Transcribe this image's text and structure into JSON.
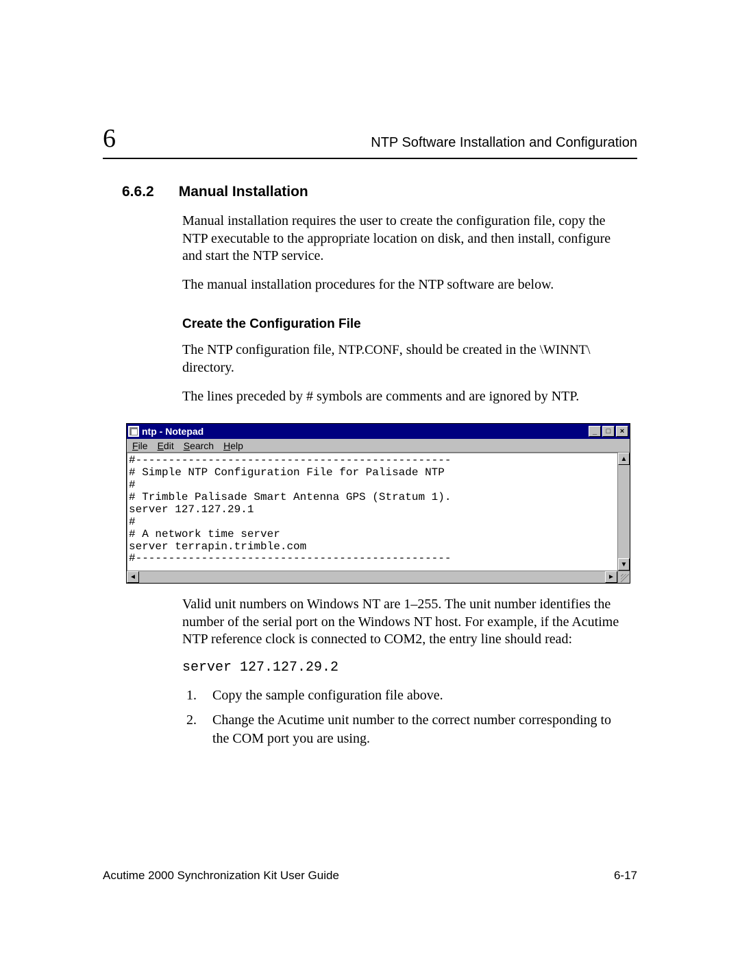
{
  "header": {
    "chapter_number": "6",
    "running_title": "NTP Software Installation and Configuration"
  },
  "section": {
    "number": "6.6.2",
    "title": "Manual Installation"
  },
  "paragraphs": {
    "p1": "Manual installation requires the user to create the configuration file, copy the NTP executable to the appropriate location on disk, and then install, configure and start the NTP service.",
    "p2": "The manual installation procedures for the NTP software are below."
  },
  "subsection": {
    "title": "Create the Configuration File",
    "p3_a": "The NTP configuration file, ",
    "p3_code": "NTP.CONF",
    "p3_b": ", should be created in the ",
    "p3_dir": "\\WINNT\\",
    "p3_c": " directory.",
    "p4": "The lines preceded by # symbols are comments and are ignored by NTP."
  },
  "notepad": {
    "title": "ntp - Notepad",
    "menus": {
      "file": "File",
      "edit": "Edit",
      "search": "Search",
      "help": "Help"
    },
    "buttons": {
      "min": "_",
      "max": "□",
      "close": "×",
      "up": "▲",
      "down": "▼",
      "left": "◄",
      "right": "►"
    },
    "content_lines": [
      "#------------------------------------------------",
      "# Simple NTP Configuration File for Palisade NTP",
      "#",
      "# Trimble Palisade Smart Antenna GPS (Stratum 1).",
      "server 127.127.29.1",
      "#",
      "# A network time server",
      "server terrapin.trimble.com",
      "#------------------------------------------------",
      ""
    ],
    "colors": {
      "titlebar_bg": "#000080",
      "titlebar_fg": "#ffffff",
      "chrome_bg": "#c0c0c0",
      "editor_bg": "#ffffff",
      "text": "#000000"
    }
  },
  "after": {
    "p5": "Valid unit numbers on Windows NT are 1–255. The unit number identifies the number of the serial port on the Windows NT host. For example, if the Acutime NTP reference clock is connected to COM2, the entry line should read:",
    "code_line": "server 127.127.29.2",
    "steps": [
      "Copy the sample configuration file above.",
      "Change the Acutime unit number to the correct number corresponding to the COM port you are using."
    ]
  },
  "footer": {
    "left": "Acutime 2000 Synchronization Kit User Guide",
    "right": "6-17"
  }
}
